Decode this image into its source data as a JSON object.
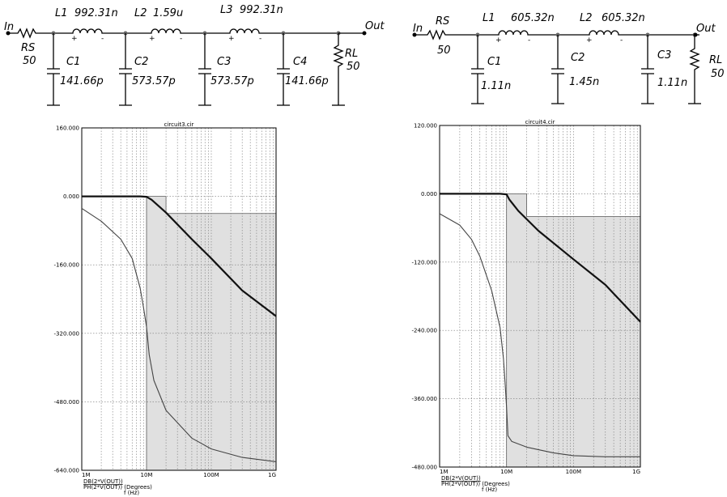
{
  "schematic_left": {
    "in_label": "In",
    "out_label": "Out",
    "source": {
      "name": "RS",
      "value": "50"
    },
    "load": {
      "name": "RL",
      "value": "50"
    },
    "inductors": [
      {
        "name": "L1",
        "value": "992.31n"
      },
      {
        "name": "L2",
        "value": "1.59u"
      },
      {
        "name": "L3",
        "value": "992.31n"
      }
    ],
    "capacitors": [
      {
        "name": "C1",
        "value": "141.66p"
      },
      {
        "name": "C2",
        "value": "573.57p"
      },
      {
        "name": "C3",
        "value": "573.57p"
      },
      {
        "name": "C4",
        "value": "141.66p"
      }
    ],
    "plus": "+",
    "minus": "-"
  },
  "schematic_right": {
    "in_label": "In",
    "out_label": "Out",
    "source": {
      "name": "RS",
      "value": "50"
    },
    "load": {
      "name": "RL",
      "value": "50"
    },
    "inductors": [
      {
        "name": "L1",
        "value": "605.32n"
      },
      {
        "name": "L2",
        "value": "605.32n"
      }
    ],
    "capacitors": [
      {
        "name": "C1",
        "value": "1.11n"
      },
      {
        "name": "C2",
        "value": "1.45n"
      },
      {
        "name": "C3",
        "value": "1.11n"
      }
    ],
    "plus": "+",
    "minus": "-"
  },
  "chart_data": [
    {
      "type": "line",
      "title": "circuit3.cir",
      "x_scale": "log",
      "xlim": [
        1000000,
        1000000000
      ],
      "x_tick_labels": [
        "1M",
        "10M",
        "100M",
        "1G"
      ],
      "ylim": [
        -640,
        160
      ],
      "y_tick_labels": [
        "160.000",
        "0.000",
        "-160.000",
        "-320.000",
        "-480.000",
        "-640.000"
      ],
      "legend": [
        "DB(2*V(OUT))",
        "PH(2*V(OUT)) (Degrees)"
      ],
      "xlabel": "f (Hz)",
      "grid": true,
      "series": [
        {
          "name": "DB(2*V(OUT))",
          "x": [
            1000000,
            5000000,
            8000000,
            10000000,
            12000000,
            20000000,
            50000000,
            100000000,
            300000000,
            1000000000
          ],
          "y": [
            0,
            0,
            0,
            -1,
            -8,
            -38,
            -100,
            -145,
            -220,
            -280
          ]
        },
        {
          "name": "PH(2*V(OUT)) (Degrees)",
          "x": [
            1000000,
            2000000,
            4000000,
            6000000,
            8000000,
            9000000,
            10000000,
            11000000,
            13000000,
            20000000,
            50000000,
            100000000,
            300000000,
            1000000000
          ],
          "y": [
            -28,
            -58,
            -100,
            -145,
            -215,
            -260,
            -305,
            -370,
            -430,
            -500,
            -565,
            -590,
            -610,
            -620
          ]
        }
      ],
      "mask": {
        "passband_edge": 20000000,
        "passband_level": 0,
        "stopband_level": -40
      }
    },
    {
      "type": "line",
      "title": "circuit4.cir",
      "x_scale": "log",
      "xlim": [
        1000000,
        1000000000
      ],
      "x_tick_labels": [
        "1M",
        "10M",
        "100M",
        "1G"
      ],
      "ylim": [
        -480,
        120
      ],
      "y_tick_labels": [
        "120.000",
        "0.000",
        "-120.000",
        "-240.000",
        "-360.000",
        "-480.000"
      ],
      "legend": [
        "DB(2*V(OUT))",
        "PH(2*V(OUT)) (Degrees)"
      ],
      "xlabel": "f (Hz)",
      "grid": true,
      "series": [
        {
          "name": "DB(2*V(OUT))",
          "x": [
            1000000,
            3000000,
            6000000,
            8000000,
            10000000,
            11000000,
            15000000,
            30000000,
            100000000,
            300000000,
            1000000000
          ],
          "y": [
            0,
            0,
            0,
            0,
            -1,
            -10,
            -30,
            -65,
            -115,
            -160,
            -225
          ]
        },
        {
          "name": "PH(2*V(OUT)) (Degrees)",
          "x": [
            1000000,
            2000000,
            3000000,
            4000000,
            6000000,
            8000000,
            9000000,
            9500000,
            10000000,
            10500000,
            12000000,
            20000000,
            50000000,
            100000000,
            300000000,
            1000000000
          ],
          "y": [
            -35,
            -55,
            -80,
            -110,
            -170,
            -235,
            -290,
            -330,
            -375,
            -425,
            -435,
            -445,
            -455,
            -460,
            -462,
            -462
          ]
        }
      ],
      "mask": {
        "passband_edge": 20000000,
        "passband_level": 0,
        "stopband_level": -40
      }
    }
  ]
}
